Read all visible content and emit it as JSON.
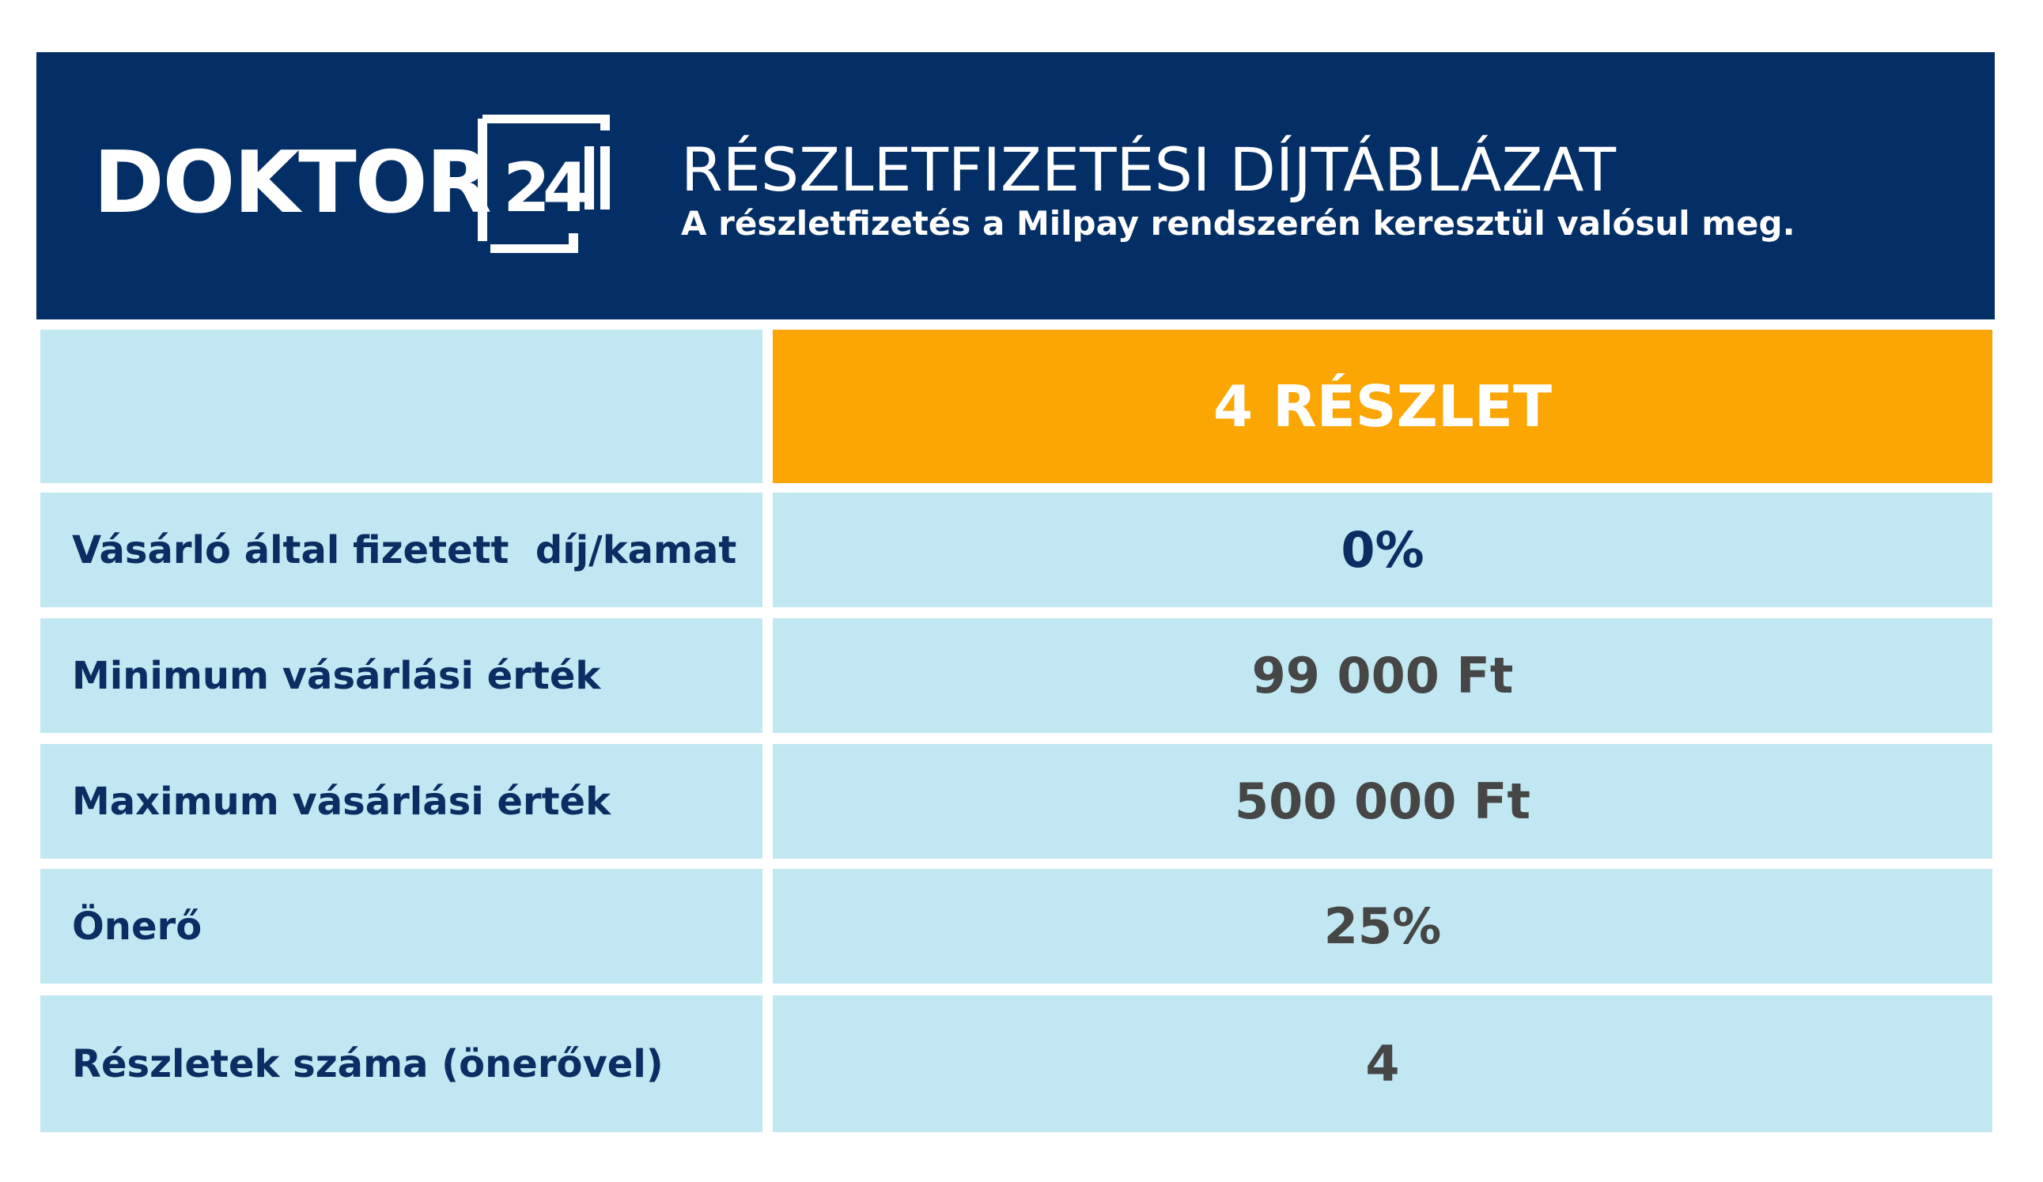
{
  "header": {
    "logo": {
      "brand": "DOKTOR",
      "number": "24"
    },
    "title": "RÉSZLETFIZETÉSI DÍJTÁBLÁZAT",
    "subtitle": "A részletfizetés a Milpay rendszerén keresztül valósul meg."
  },
  "table": {
    "column_header": "4 RÉSZLET",
    "rows": [
      [
        "Vásárló által fizetett  díj/kamat",
        "0%"
      ],
      [
        "Minimum vásárlási érték",
        "99 000 Ft"
      ],
      [
        "Maximum vásárlási érték",
        "500 000 Ft"
      ],
      [
        "Önerő",
        "25%"
      ],
      [
        "Részletek száma (önerővel)",
        "4"
      ]
    ]
  }
}
